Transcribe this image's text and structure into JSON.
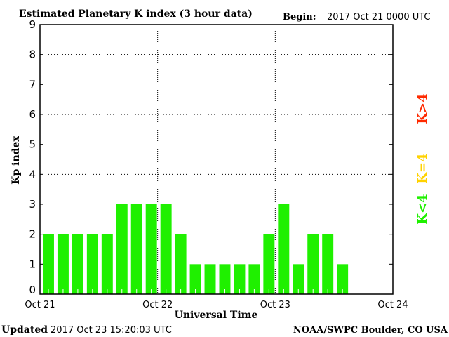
{
  "chart_data": {
    "type": "bar",
    "title": "Estimated Planetary K index (3 hour data)",
    "begin_label": "Begin:",
    "begin_value": "2017 Oct 21 0000 UTC",
    "xlabel": "Universal Time",
    "ylabel": "Kp index",
    "ylim": [
      0,
      9
    ],
    "yticks": [
      "0",
      "1",
      "2",
      "3",
      "4",
      "5",
      "6",
      "7",
      "8",
      "9"
    ],
    "gridlines_y": [
      4,
      6,
      8
    ],
    "x_tick_labels": [
      "Oct 21",
      "Oct 22",
      "Oct 23",
      "Oct 24"
    ],
    "interval_hours": 3,
    "slots": 24,
    "values": [
      2,
      2,
      2,
      2,
      2,
      3,
      3,
      3,
      3,
      2,
      1,
      1,
      1,
      1,
      1,
      2,
      3,
      1,
      2,
      2,
      1
    ],
    "bar_color": "#1ff000",
    "legend": [
      {
        "label": "K<4",
        "color": "#1ff000"
      },
      {
        "label": "K=4",
        "color": "#ffd200"
      },
      {
        "label": "K>4",
        "color": "#ff2a00"
      }
    ]
  },
  "footer": {
    "updated_label": "Updated",
    "updated_value": "2017 Oct 23 15:20:03 UTC",
    "source": "NOAA/SWPC Boulder, CO USA"
  }
}
